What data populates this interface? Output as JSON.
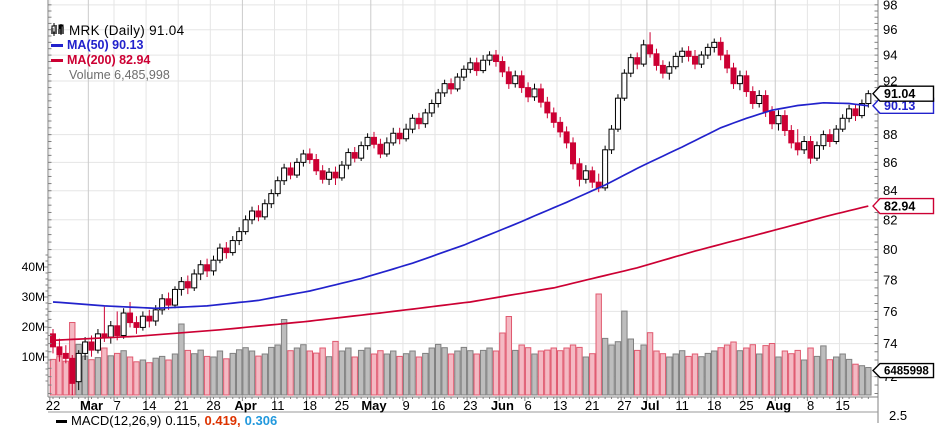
{
  "chart_data": {
    "type": "candlestick",
    "legend": {
      "title": "MRK (Daily) 91.04",
      "ma50": "MA(50) 90.13",
      "ma200": "MA(200) 82.94",
      "volume": "Volume 6,485,998"
    },
    "colors": {
      "up_fill": "#ffffff",
      "up_stroke": "#000000",
      "down_fill": "#cc0033",
      "down_stroke": "#cc0033",
      "ma50": "#2222cc",
      "ma200": "#cc0033",
      "vol_up_fill": "#bdbdbd",
      "vol_up_stroke": "#808080",
      "vol_down_fill": "#f4b9c3",
      "vol_down_stroke": "#e0596f",
      "grid": "#e5e5e5",
      "grid_month": "#cbcbcb",
      "axis": "#808080",
      "label": "#000000"
    },
    "price_axis": {
      "scale": "log",
      "labels": [
        98,
        96,
        94,
        92,
        88,
        86,
        84,
        82,
        80,
        78,
        76,
        74,
        72
      ],
      "minor_step": 0.5,
      "visible_range": [
        70.9,
        98.3
      ]
    },
    "volume_axis": {
      "labels": [
        "40M",
        "30M",
        "20M",
        "10M"
      ],
      "values": [
        40,
        30,
        20,
        10
      ]
    },
    "x_axis": {
      "labels": [
        {
          "day": 0,
          "text": "22",
          "month": false
        },
        {
          "day": 6,
          "text": "Mar",
          "month": true
        },
        {
          "day": 10,
          "text": "7",
          "month": false
        },
        {
          "day": 15,
          "text": "14",
          "month": false
        },
        {
          "day": 20,
          "text": "21",
          "month": false
        },
        {
          "day": 25,
          "text": "28",
          "month": false
        },
        {
          "day": 30,
          "text": "Apr",
          "month": true
        },
        {
          "day": 35,
          "text": "11",
          "month": false
        },
        {
          "day": 40,
          "text": "18",
          "month": false
        },
        {
          "day": 45,
          "text": "25",
          "month": false
        },
        {
          "day": 50,
          "text": "May",
          "month": true
        },
        {
          "day": 55,
          "text": "9",
          "month": false
        },
        {
          "day": 60,
          "text": "16",
          "month": false
        },
        {
          "day": 65,
          "text": "23",
          "month": false
        },
        {
          "day": 70,
          "text": "Jun",
          "month": true
        },
        {
          "day": 74,
          "text": "6",
          "month": false
        },
        {
          "day": 79,
          "text": "13",
          "month": false
        },
        {
          "day": 84,
          "text": "21",
          "month": false
        },
        {
          "day": 89,
          "text": "27",
          "month": false
        },
        {
          "day": 93,
          "text": "Jul",
          "month": true
        },
        {
          "day": 98,
          "text": "11",
          "month": false
        },
        {
          "day": 103,
          "text": "18",
          "month": false
        },
        {
          "day": 108,
          "text": "25",
          "month": false
        },
        {
          "day": 113,
          "text": "Aug",
          "month": true
        },
        {
          "day": 118,
          "text": "8",
          "month": false
        },
        {
          "day": 123,
          "text": "15",
          "month": false
        }
      ]
    },
    "price_tags": [
      {
        "text": "82.94",
        "price": 82.94,
        "variant": "ma200"
      },
      {
        "text": "90.13",
        "price": 90.13,
        "variant": "ma50"
      },
      {
        "text": "91.04",
        "price": 91.04,
        "variant": "last"
      }
    ],
    "volume_tag": {
      "text": "6485998",
      "value": 6.49
    },
    "macd_footer": {
      "line_icon": "",
      "label": "MACD(12,26,9)",
      "value1": "0.115,",
      "value2": "0.419,",
      "value3": "0.306"
    },
    "macd_axis_label": "2.5",
    "candles": [
      [
        74.6,
        74.9,
        73.4,
        73.8
      ],
      [
        73.8,
        74.3,
        72.9,
        73.3
      ],
      [
        73.4,
        73.9,
        72.8,
        73.1
      ],
      [
        73.1,
        73.3,
        70.9,
        71.6
      ],
      [
        71.7,
        73.6,
        71.2,
        73.4
      ],
      [
        73.4,
        74.4,
        73.0,
        74.1
      ],
      [
        74.1,
        74.5,
        73.2,
        73.6
      ],
      [
        73.6,
        74.9,
        73.4,
        74.6
      ],
      [
        74.6,
        76.3,
        74.1,
        74.4
      ],
      [
        74.4,
        75.4,
        74.0,
        75.1
      ],
      [
        75.1,
        76.0,
        74.2,
        74.5
      ],
      [
        74.5,
        76.2,
        74.3,
        75.9
      ],
      [
        75.9,
        76.6,
        75.0,
        75.3
      ],
      [
        75.3,
        75.7,
        74.6,
        75.0
      ],
      [
        75.0,
        76.0,
        74.8,
        75.7
      ],
      [
        75.7,
        76.1,
        75.0,
        75.4
      ],
      [
        75.4,
        76.4,
        75.1,
        76.1
      ],
      [
        76.1,
        77.1,
        75.8,
        76.8
      ],
      [
        76.8,
        77.2,
        76.1,
        76.4
      ],
      [
        76.4,
        77.6,
        76.2,
        77.4
      ],
      [
        77.4,
        78.2,
        77.0,
        77.9
      ],
      [
        77.9,
        78.3,
        77.1,
        77.5
      ],
      [
        77.5,
        78.7,
        77.3,
        78.4
      ],
      [
        78.4,
        79.3,
        78.0,
        79.0
      ],
      [
        79.0,
        79.4,
        78.2,
        78.6
      ],
      [
        78.6,
        79.6,
        78.3,
        79.3
      ],
      [
        79.3,
        80.4,
        79.1,
        80.1
      ],
      [
        80.1,
        80.5,
        79.4,
        79.8
      ],
      [
        79.8,
        80.9,
        79.6,
        80.6
      ],
      [
        80.6,
        81.5,
        80.3,
        81.2
      ],
      [
        81.2,
        82.3,
        81.0,
        82.0
      ],
      [
        82.0,
        82.9,
        81.7,
        82.6
      ],
      [
        82.6,
        83.0,
        81.9,
        82.2
      ],
      [
        82.2,
        83.4,
        82.0,
        83.1
      ],
      [
        83.1,
        84.1,
        82.8,
        83.8
      ],
      [
        83.8,
        85.0,
        83.6,
        84.7
      ],
      [
        84.7,
        85.9,
        84.4,
        85.6
      ],
      [
        85.6,
        86.0,
        84.8,
        85.1
      ],
      [
        85.1,
        86.3,
        84.9,
        86.0
      ],
      [
        86.0,
        86.9,
        85.7,
        86.6
      ],
      [
        86.6,
        87.0,
        85.9,
        86.2
      ],
      [
        86.2,
        86.6,
        85.1,
        85.4
      ],
      [
        85.4,
        85.8,
        84.5,
        84.8
      ],
      [
        84.8,
        85.6,
        84.4,
        85.3
      ],
      [
        85.3,
        85.7,
        84.4,
        84.9
      ],
      [
        84.9,
        86.1,
        84.7,
        85.8
      ],
      [
        85.8,
        87.0,
        85.5,
        86.7
      ],
      [
        86.7,
        87.1,
        86.0,
        86.3
      ],
      [
        86.3,
        87.5,
        86.1,
        87.2
      ],
      [
        87.2,
        88.1,
        86.9,
        87.8
      ],
      [
        87.8,
        88.2,
        87.0,
        87.3
      ],
      [
        87.3,
        87.7,
        86.3,
        86.6
      ],
      [
        86.6,
        87.8,
        86.4,
        87.4
      ],
      [
        87.4,
        88.5,
        87.2,
        88.1
      ],
      [
        88.1,
        88.5,
        87.3,
        87.7
      ],
      [
        87.7,
        88.8,
        87.5,
        88.4
      ],
      [
        88.4,
        89.5,
        88.1,
        89.2
      ],
      [
        89.2,
        89.6,
        88.4,
        88.8
      ],
      [
        88.8,
        89.9,
        88.5,
        89.6
      ],
      [
        89.6,
        90.6,
        89.3,
        90.3
      ],
      [
        90.3,
        91.4,
        90.0,
        91.1
      ],
      [
        91.1,
        92.1,
        90.8,
        91.8
      ],
      [
        91.8,
        92.2,
        91.0,
        91.4
      ],
      [
        91.4,
        92.6,
        91.2,
        92.3
      ],
      [
        92.3,
        93.2,
        92.0,
        92.9
      ],
      [
        92.9,
        93.8,
        92.6,
        93.4
      ],
      [
        93.4,
        93.8,
        92.4,
        92.8
      ],
      [
        92.8,
        94.0,
        92.6,
        93.6
      ],
      [
        93.6,
        94.3,
        93.2,
        94.0
      ],
      [
        94.0,
        94.4,
        93.1,
        93.5
      ],
      [
        93.5,
        93.9,
        92.3,
        92.7
      ],
      [
        92.7,
        93.1,
        91.4,
        91.8
      ],
      [
        91.8,
        92.8,
        91.5,
        92.4
      ],
      [
        92.4,
        92.8,
        91.1,
        91.5
      ],
      [
        91.5,
        91.9,
        90.4,
        90.8
      ],
      [
        90.8,
        91.8,
        90.5,
        91.4
      ],
      [
        91.4,
        91.8,
        90.0,
        90.4
      ],
      [
        90.4,
        90.8,
        89.2,
        89.6
      ],
      [
        89.6,
        90.0,
        88.5,
        88.9
      ],
      [
        88.9,
        89.3,
        87.8,
        88.2
      ],
      [
        88.2,
        88.6,
        87.0,
        87.4
      ],
      [
        87.4,
        87.8,
        85.5,
        85.9
      ],
      [
        85.9,
        86.3,
        84.3,
        84.8
      ],
      [
        84.8,
        85.8,
        84.5,
        85.4
      ],
      [
        85.4,
        85.7,
        84.2,
        84.6
      ],
      [
        84.6,
        85.2,
        83.9,
        84.2
      ],
      [
        84.2,
        87.2,
        84.0,
        86.9
      ],
      [
        86.9,
        88.7,
        86.6,
        88.4
      ],
      [
        88.4,
        91.0,
        88.2,
        90.7
      ],
      [
        90.7,
        92.9,
        90.5,
        92.6
      ],
      [
        92.6,
        94.1,
        92.3,
        93.8
      ],
      [
        93.8,
        94.2,
        92.9,
        93.3
      ],
      [
        93.3,
        95.2,
        93.1,
        94.8
      ],
      [
        94.8,
        95.8,
        93.8,
        94.1
      ],
      [
        94.1,
        94.5,
        92.8,
        93.2
      ],
      [
        93.2,
        93.6,
        92.2,
        92.6
      ],
      [
        92.6,
        93.5,
        92.1,
        93.1
      ],
      [
        93.1,
        94.2,
        92.9,
        93.9
      ],
      [
        93.9,
        94.6,
        93.4,
        94.3
      ],
      [
        94.3,
        94.7,
        93.5,
        93.9
      ],
      [
        93.9,
        94.4,
        92.9,
        93.3
      ],
      [
        93.3,
        94.3,
        93.0,
        94.0
      ],
      [
        94.0,
        94.9,
        93.7,
        94.6
      ],
      [
        94.6,
        95.3,
        94.2,
        95.0
      ],
      [
        95.0,
        95.4,
        93.6,
        94.0
      ],
      [
        94.0,
        94.4,
        92.6,
        93.0
      ],
      [
        93.0,
        93.4,
        91.4,
        91.8
      ],
      [
        91.8,
        92.8,
        91.3,
        92.4
      ],
      [
        92.4,
        92.8,
        90.8,
        91.2
      ],
      [
        91.2,
        91.6,
        89.9,
        90.3
      ],
      [
        90.3,
        91.3,
        90.0,
        90.9
      ],
      [
        90.9,
        91.3,
        89.3,
        89.7
      ],
      [
        89.7,
        90.1,
        88.4,
        88.8
      ],
      [
        88.8,
        89.8,
        88.3,
        89.4
      ],
      [
        89.4,
        89.8,
        87.9,
        88.3
      ],
      [
        88.3,
        88.7,
        87.0,
        87.4
      ],
      [
        87.4,
        88.4,
        86.5,
        86.9
      ],
      [
        86.9,
        87.9,
        86.6,
        87.5
      ],
      [
        87.5,
        87.9,
        85.9,
        86.3
      ],
      [
        86.3,
        87.5,
        86.1,
        87.2
      ],
      [
        87.2,
        88.3,
        86.9,
        88.0
      ],
      [
        88.0,
        88.4,
        87.1,
        87.5
      ],
      [
        87.5,
        88.7,
        87.3,
        88.4
      ],
      [
        88.4,
        89.5,
        88.2,
        89.2
      ],
      [
        89.2,
        90.2,
        88.9,
        89.9
      ],
      [
        89.9,
        90.3,
        89.0,
        89.4
      ],
      [
        89.4,
        90.6,
        89.2,
        90.3
      ],
      [
        90.3,
        91.3,
        90.0,
        91.04
      ]
    ],
    "volume_millions": [
      9.2,
      10.1,
      8.6,
      21.5,
      14.2,
      10.3,
      9.1,
      9.8,
      13.0,
      10.4,
      11.2,
      12.1,
      10.0,
      8.4,
      9.0,
      8.1,
      9.6,
      10.2,
      9.0,
      11.0,
      21.0,
      12.2,
      11.1,
      12.3,
      10.2,
      10.0,
      12.0,
      9.4,
      11.2,
      12.4,
      13.1,
      12.0,
      10.3,
      11.0,
      13.2,
      14.0,
      22.5,
      12.1,
      13.0,
      14.1,
      12.0,
      11.3,
      13.0,
      10.1,
      15.2,
      12.0,
      13.0,
      10.0,
      12.2,
      13.0,
      11.0,
      12.1,
      11.0,
      12.0,
      10.2,
      11.1,
      12.0,
      10.0,
      11.2,
      13.0,
      14.2,
      13.1,
      11.0,
      12.0,
      13.2,
      12.1,
      11.0,
      12.2,
      13.0,
      12.0,
      18.0,
      23.5,
      12.2,
      14.0,
      13.1,
      11.0,
      12.0,
      12.3,
      13.0,
      12.1,
      13.0,
      14.0,
      13.2,
      10.0,
      11.1,
      31.0,
      16.2,
      14.0,
      15.1,
      25.3,
      16.0,
      12.2,
      14.0,
      18.1,
      12.0,
      11.1,
      10.0,
      11.0,
      12.1,
      10.2,
      11.0,
      10.1,
      11.2,
      12.0,
      13.1,
      14.0,
      15.0,
      12.1,
      13.0,
      14.1,
      11.0,
      13.8,
      14.5,
      10.0,
      12.0,
      11.1,
      12.2,
      9.0,
      13.0,
      10.2,
      13.7,
      9.1,
      10.0,
      11.0,
      9.2,
      7.6,
      7.1,
      6.49
    ],
    "ma50_points": [
      [
        0,
        76.6
      ],
      [
        8,
        76.35
      ],
      [
        16,
        76.2
      ],
      [
        24,
        76.35
      ],
      [
        32,
        76.7
      ],
      [
        40,
        77.3
      ],
      [
        48,
        78.1
      ],
      [
        56,
        79.1
      ],
      [
        64,
        80.3
      ],
      [
        72,
        81.7
      ],
      [
        80,
        83.2
      ],
      [
        86,
        84.4
      ],
      [
        92,
        85.8
      ],
      [
        98,
        87.1
      ],
      [
        104,
        88.5
      ],
      [
        108,
        89.2
      ],
      [
        112,
        89.8
      ],
      [
        116,
        90.15
      ],
      [
        120,
        90.35
      ],
      [
        124,
        90.3
      ],
      [
        127,
        90.13
      ]
    ],
    "ma200_points": [
      [
        0,
        74.2
      ],
      [
        13,
        74.45
      ],
      [
        26,
        74.85
      ],
      [
        39,
        75.35
      ],
      [
        52,
        75.95
      ],
      [
        65,
        76.6
      ],
      [
        78,
        77.5
      ],
      [
        91,
        78.8
      ],
      [
        100,
        79.9
      ],
      [
        108,
        80.8
      ],
      [
        115,
        81.6
      ],
      [
        121,
        82.3
      ],
      [
        127,
        82.94
      ]
    ]
  }
}
